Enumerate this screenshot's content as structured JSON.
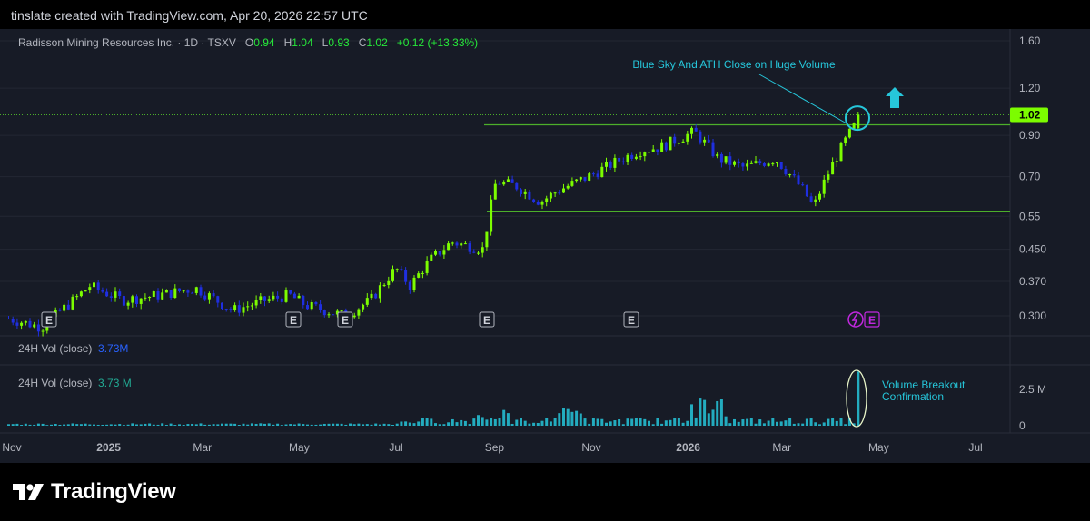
{
  "header": {
    "created_text": "tinslate created with TradingView.com, Apr 20, 2026 22:57 UTC"
  },
  "legend": {
    "symbol": "Radisson Mining Resources Inc. · 1D · TSXV",
    "o_label": "O",
    "o_value": "0.94",
    "h_label": "H",
    "h_value": "1.04",
    "l_label": "L",
    "l_value": "0.93",
    "c_label": "C",
    "c_value": "1.02",
    "change": "+0.12 (+13.33%)"
  },
  "volume_legend": {
    "label": "24H Vol (close)",
    "value": "3.73 M",
    "value_alt": "3.73M"
  },
  "footer": {
    "brand": "TradingView"
  },
  "colors": {
    "up": "#7cfc00",
    "down": "#1f2fe0",
    "annotation": "#26c6da",
    "line": "#4caf2a",
    "price_tag": "#7cfc00",
    "volume": "#26c6da",
    "earnings_icon": "#c228e0"
  },
  "chart_data": [
    {
      "type": "candlestick",
      "scale": "log",
      "price_ticks": [
        "1.60",
        "1.20",
        "0.90",
        "0.70",
        "0.55",
        "0.450",
        "0.370",
        "0.300"
      ],
      "current_price_label": "1.02",
      "x_ticks": [
        "Nov",
        "2025",
        "Mar",
        "May",
        "Jul",
        "Sep",
        "Nov",
        "2026",
        "Mar",
        "May",
        "Jul"
      ],
      "earnings_markers": [
        "E",
        "E",
        "E",
        "E",
        "E",
        "E"
      ],
      "annotation": "Blue Sky And ATH Close on Huge Volume",
      "resistance_level": 0.96,
      "support_level": 0.565,
      "close_path": [
        {
          "date": "2024-10-30",
          "close": 0.295
        },
        {
          "date": "2024-11-20",
          "close": 0.28
        },
        {
          "date": "2024-12-10",
          "close": 0.33
        },
        {
          "date": "2024-12-20",
          "close": 0.36
        },
        {
          "date": "2025-01-10",
          "close": 0.33
        },
        {
          "date": "2025-02-01",
          "close": 0.34
        },
        {
          "date": "2025-02-25",
          "close": 0.355
        },
        {
          "date": "2025-03-20",
          "close": 0.31
        },
        {
          "date": "2025-04-10",
          "close": 0.33
        },
        {
          "date": "2025-04-25",
          "close": 0.34
        },
        {
          "date": "2025-05-05",
          "close": 0.32
        },
        {
          "date": "2025-05-30",
          "close": 0.3
        },
        {
          "date": "2025-06-15",
          "close": 0.33
        },
        {
          "date": "2025-07-01",
          "close": 0.4
        },
        {
          "date": "2025-07-10",
          "close": 0.36
        },
        {
          "date": "2025-07-22",
          "close": 0.42
        },
        {
          "date": "2025-08-05",
          "close": 0.47
        },
        {
          "date": "2025-08-15",
          "close": 0.46
        },
        {
          "date": "2025-08-25",
          "close": 0.45
        },
        {
          "date": "2025-09-02",
          "close": 0.68
        },
        {
          "date": "2025-09-15",
          "close": 0.66
        },
        {
          "date": "2025-09-30",
          "close": 0.6
        },
        {
          "date": "2025-10-10",
          "close": 0.64
        },
        {
          "date": "2025-10-30",
          "close": 0.7
        },
        {
          "date": "2025-11-15",
          "close": 0.76
        },
        {
          "date": "2025-12-01",
          "close": 0.82
        },
        {
          "date": "2025-12-15",
          "close": 0.84
        },
        {
          "date": "2026-01-05",
          "close": 0.92
        },
        {
          "date": "2026-01-20",
          "close": 0.78
        },
        {
          "date": "2026-02-05",
          "close": 0.74
        },
        {
          "date": "2026-02-25",
          "close": 0.78
        },
        {
          "date": "2026-03-15",
          "close": 0.64
        },
        {
          "date": "2026-03-21",
          "close": 0.58
        },
        {
          "date": "2026-04-01",
          "close": 0.74
        },
        {
          "date": "2026-04-12",
          "close": 0.9
        },
        {
          "date": "2026-04-20",
          "close": 1.02
        }
      ]
    },
    {
      "type": "bar",
      "title": "24H Vol (close)",
      "y_ticks": [
        "2.5 M",
        "0"
      ],
      "annotation": "Volume Breakout Confirmation",
      "last_value": 3.73,
      "unit": "M"
    }
  ]
}
